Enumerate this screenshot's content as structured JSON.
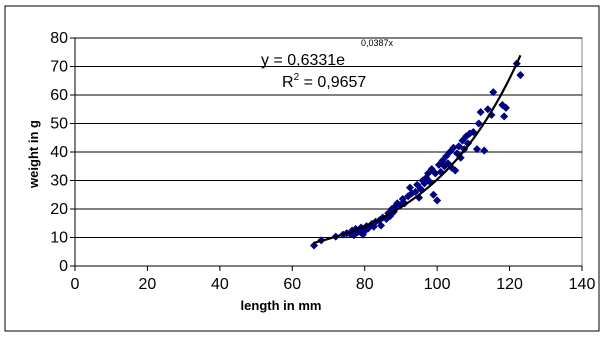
{
  "chart_data": {
    "type": "scatter",
    "xlabel": "length in mm",
    "ylabel": "weight in g",
    "xlim": [
      0,
      140
    ],
    "ylim": [
      0,
      80
    ],
    "x_ticks": [
      0,
      20,
      40,
      60,
      80,
      100,
      120,
      140
    ],
    "y_ticks": [
      0,
      10,
      20,
      30,
      40,
      50,
      60,
      70,
      80
    ],
    "grid": "horizontal",
    "legend": "none",
    "marker_color": "#000080",
    "trendline_color": "#000000",
    "trendline": {
      "type": "exponential",
      "a": 0.6331,
      "b": 0.0387,
      "x_range": [
        66,
        123
      ],
      "equation_text": "y = 0,6331e",
      "exponent_text": "0,0387x",
      "r2_prefix": "R",
      "r2_sup": "2",
      "r2_value_text": " = 0,9657"
    },
    "points": [
      [
        66,
        7.2
      ],
      [
        68,
        9
      ],
      [
        72,
        10.3
      ],
      [
        74,
        11
      ],
      [
        75,
        11.5
      ],
      [
        76,
        11.2
      ],
      [
        76.5,
        12.4
      ],
      [
        77,
        10.8
      ],
      [
        77.5,
        13
      ],
      [
        78,
        11.8
      ],
      [
        78.5,
        12.5
      ],
      [
        79,
        13.5
      ],
      [
        79.5,
        11
      ],
      [
        80,
        12.2
      ],
      [
        80.5,
        14
      ],
      [
        81,
        13.2
      ],
      [
        82,
        14.8
      ],
      [
        82.5,
        13.8
      ],
      [
        83,
        15.5
      ],
      [
        84,
        16
      ],
      [
        84.5,
        14.2
      ],
      [
        85,
        17
      ],
      [
        86,
        16.5
      ],
      [
        86.5,
        18.5
      ],
      [
        87,
        17.5
      ],
      [
        87.5,
        20
      ],
      [
        88,
        19
      ],
      [
        88.5,
        21
      ],
      [
        89,
        22
      ],
      [
        90,
        21.5
      ],
      [
        90.5,
        23.5
      ],
      [
        91,
        22
      ],
      [
        92,
        24.5
      ],
      [
        92.5,
        27.5
      ],
      [
        93,
        25.5
      ],
      [
        94,
        26
      ],
      [
        94.5,
        28.5
      ],
      [
        95,
        24
      ],
      [
        95.5,
        27
      ],
      [
        96,
        30
      ],
      [
        96.5,
        29
      ],
      [
        97,
        31
      ],
      [
        97.5,
        32.5
      ],
      [
        98,
        29.5
      ],
      [
        98.5,
        34
      ],
      [
        99,
        25
      ],
      [
        99.5,
        32.5
      ],
      [
        100,
        23
      ],
      [
        100.5,
        35.5
      ],
      [
        101,
        33
      ],
      [
        101.5,
        37
      ],
      [
        102,
        35
      ],
      [
        102.5,
        38.5
      ],
      [
        103,
        36
      ],
      [
        103.5,
        40
      ],
      [
        104,
        34.5
      ],
      [
        104.5,
        41.5
      ],
      [
        105,
        33.5
      ],
      [
        105.5,
        39.5
      ],
      [
        106,
        42
      ],
      [
        106.5,
        38
      ],
      [
        107,
        44
      ],
      [
        107.5,
        41
      ],
      [
        108,
        45.5
      ],
      [
        108.5,
        43
      ],
      [
        109,
        46.5
      ],
      [
        110,
        47
      ],
      [
        111,
        41
      ],
      [
        111.5,
        50
      ],
      [
        112,
        54
      ],
      [
        113,
        40.5
      ],
      [
        114,
        55
      ],
      [
        115,
        53
      ],
      [
        115.5,
        61
      ],
      [
        118,
        56.5
      ],
      [
        118.5,
        52.5
      ],
      [
        119,
        55.5
      ],
      [
        122,
        71
      ],
      [
        123,
        67
      ]
    ]
  }
}
